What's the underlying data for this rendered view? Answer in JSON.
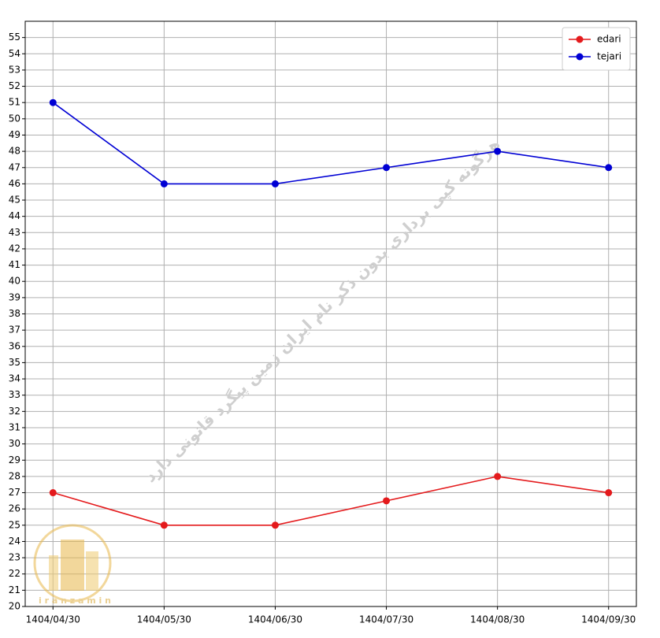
{
  "chart_data": {
    "type": "line",
    "categories": [
      "1404/04/30",
      "1404/05/30",
      "1404/06/30",
      "1404/07/30",
      "1404/08/30",
      "1404/09/30"
    ],
    "series": [
      {
        "name": "edari",
        "color": "#e41a1c",
        "values": [
          27,
          25,
          25,
          26.5,
          28,
          27
        ]
      },
      {
        "name": "tejari",
        "color": "#0000d4",
        "values": [
          51,
          46,
          46,
          47,
          48,
          47
        ]
      }
    ],
    "ylim": [
      20,
      56
    ],
    "yticks": [
      20,
      21,
      22,
      23,
      24,
      25,
      26,
      27,
      28,
      29,
      30,
      31,
      32,
      33,
      34,
      35,
      36,
      37,
      38,
      39,
      40,
      41,
      42,
      43,
      44,
      45,
      46,
      47,
      48,
      49,
      50,
      51,
      52,
      53,
      54,
      55
    ],
    "grid": true,
    "legend": "upper right",
    "watermark": "هرگونه کپی برداری بدون ذکر نام ایران زمین پیگرد قانونی دارد",
    "logo_text": "i r a n z a m i n"
  }
}
